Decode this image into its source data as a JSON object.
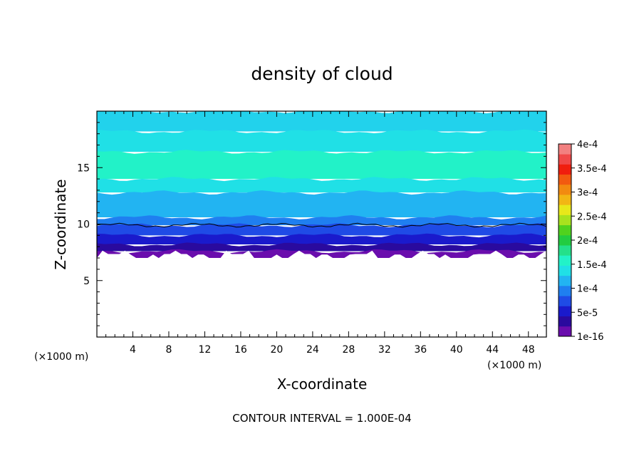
{
  "chart_data": {
    "type": "heatmap",
    "title": "density of cloud",
    "xlabel": "X-coordinate",
    "ylabel": "Z-coordinate",
    "x_unit": "(×1000 m)",
    "y_unit": "(×1000 m)",
    "xlim": [
      0,
      50
    ],
    "ylim": [
      0,
      20
    ],
    "x_ticks": [
      "4",
      "8",
      "12",
      "16",
      "20",
      "24",
      "28",
      "32",
      "36",
      "40",
      "44",
      "48"
    ],
    "y_ticks": [
      "5",
      "10",
      "15"
    ],
    "footer": "CONTOUR INTERVAL = 1.000E-04",
    "colorbar": {
      "labels": [
        "4e-4",
        "3.5e-4",
        "3e-4",
        "2.5e-4",
        "2e-4",
        "1.5e-4",
        "1e-4",
        "5e-5",
        "1e-16"
      ],
      "colors": [
        "#6a0dad",
        "#2a0a9e",
        "#1a1acc",
        "#1f4be6",
        "#1f7ff0",
        "#22b4f2",
        "#20e0e6",
        "#22f2c8",
        "#24e08a",
        "#22cc40",
        "#50d21e",
        "#a8e21e",
        "#e8e81a",
        "#f2b614",
        "#f28a10",
        "#f25a10",
        "#f01e0e",
        "#f04848",
        "#f28080"
      ]
    },
    "bands": [
      {
        "z_bottom": 7.0,
        "z_top": 7.6,
        "color": "#6a0dad"
      },
      {
        "z_bottom": 7.6,
        "z_top": 8.2,
        "color": "#2a0a9e"
      },
      {
        "z_bottom": 8.2,
        "z_top": 9.0,
        "color": "#1a1acc"
      },
      {
        "z_bottom": 9.0,
        "z_top": 9.9,
        "color": "#1f4be6"
      },
      {
        "z_bottom": 9.9,
        "z_top": 10.6,
        "color": "#1f7ff0"
      },
      {
        "z_bottom": 10.6,
        "z_top": 12.8,
        "color": "#22b4f2"
      },
      {
        "z_bottom": 12.8,
        "z_top": 14.0,
        "color": "#20e0e6"
      },
      {
        "z_bottom": 14.0,
        "z_top": 16.4,
        "color": "#22f2c8"
      },
      {
        "z_bottom": 16.4,
        "z_top": 18.2,
        "color": "#20e0e6"
      },
      {
        "z_bottom": 18.2,
        "z_top": 20.0,
        "color": "#22d2ec"
      }
    ],
    "contour_1e_4_z": 9.9
  }
}
